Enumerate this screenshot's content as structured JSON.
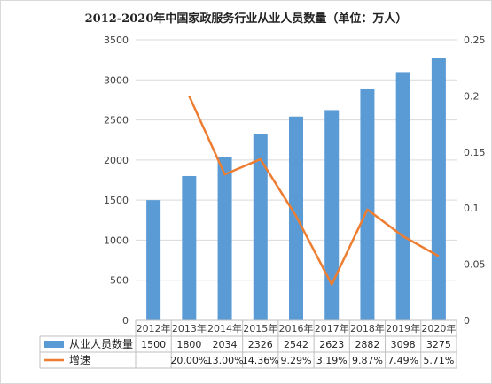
{
  "chart_data": {
    "type": "bar",
    "title": "2012-2020年中国家政服务行业从业人员数量（单位：万人）",
    "categories": [
      "2012年",
      "2013年",
      "2014年",
      "2015年",
      "2016年",
      "2017年",
      "2018年",
      "2019年",
      "2020年"
    ],
    "series": [
      {
        "name": "从业人员数量",
        "type": "bar",
        "axis": "left",
        "color": "#5B9BD5",
        "values": [
          1500,
          1800,
          2034,
          2326,
          2542,
          2623,
          2882,
          3098,
          3275
        ],
        "table_values": [
          "1500",
          "1800",
          "2034",
          "2326",
          "2542",
          "2623",
          "2882",
          "3098",
          "3275"
        ]
      },
      {
        "name": "增速",
        "type": "line",
        "axis": "right",
        "color": "#ED7D31",
        "values": [
          null,
          0.2,
          0.13,
          0.1436,
          0.0929,
          0.0319,
          0.0987,
          0.0749,
          0.0571
        ],
        "table_values": [
          "",
          "20.00%",
          "13.00%",
          "14.36%",
          "9.29%",
          "3.19%",
          "9.87%",
          "7.49%",
          "5.71%"
        ]
      }
    ],
    "y_left": {
      "min": 0,
      "max": 3500,
      "ticks": [
        "0",
        "500",
        "1000",
        "1500",
        "2000",
        "2500",
        "3000",
        "3500"
      ]
    },
    "y_right": {
      "min": 0,
      "max": 0.25,
      "ticks": [
        "0",
        "0.05",
        "0.1",
        "0.15",
        "0.2",
        "0.25"
      ]
    },
    "grid": true,
    "legend": "data-table-bottom"
  }
}
